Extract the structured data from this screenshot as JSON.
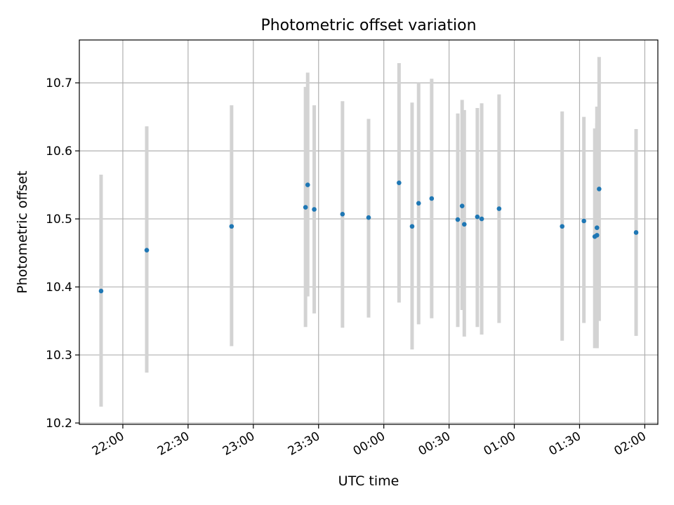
{
  "chart_data": {
    "type": "scatter",
    "title": "Photometric offset variation",
    "xlabel": "UTC time",
    "ylabel": "Photometric offset",
    "x_axis_type": "time",
    "xlim": [
      "21:40",
      "02:06"
    ],
    "ylim": [
      10.198,
      10.763
    ],
    "xticks": [
      "22:00",
      "22:30",
      "23:00",
      "23:30",
      "00:00",
      "00:30",
      "01:00",
      "01:30",
      "02:00"
    ],
    "yticks": [
      10.2,
      10.3,
      10.4,
      10.5,
      10.6,
      10.7
    ],
    "grid": true,
    "marker_color": "#1f77b4",
    "errorbar_color": "#d3d3d3",
    "series": [
      {
        "x": [
          "21:50",
          "22:11",
          "22:50",
          "23:24",
          "23:25",
          "23:28",
          "23:41",
          "23:53",
          "00:07",
          "00:13",
          "00:16",
          "00:22",
          "00:34",
          "00:36",
          "00:37",
          "00:43",
          "00:45",
          "00:53",
          "01:22",
          "01:32",
          "01:37",
          "01:38",
          "01:38",
          "01:39",
          "01:56"
        ],
        "y": [
          10.394,
          10.454,
          10.489,
          10.517,
          10.55,
          10.514,
          10.507,
          10.502,
          10.553,
          10.489,
          10.523,
          10.53,
          10.499,
          10.519,
          10.492,
          10.503,
          10.5,
          10.515,
          10.489,
          10.497,
          10.474,
          10.476,
          10.487,
          10.544,
          10.48
        ],
        "err_low": [
          10.224,
          10.274,
          10.313,
          10.341,
          10.386,
          10.361,
          10.34,
          10.355,
          10.377,
          10.308,
          10.345,
          10.354,
          10.341,
          10.366,
          10.327,
          10.341,
          10.33,
          10.347,
          10.321,
          10.347,
          10.31,
          10.31,
          10.31,
          10.35,
          10.328
        ],
        "err_high": [
          10.565,
          10.636,
          10.667,
          10.694,
          10.715,
          10.667,
          10.673,
          10.647,
          10.729,
          10.671,
          10.7,
          10.706,
          10.655,
          10.675,
          10.66,
          10.663,
          10.67,
          10.683,
          10.658,
          10.65,
          10.633,
          10.641,
          10.665,
          10.738,
          10.632
        ]
      }
    ]
  }
}
